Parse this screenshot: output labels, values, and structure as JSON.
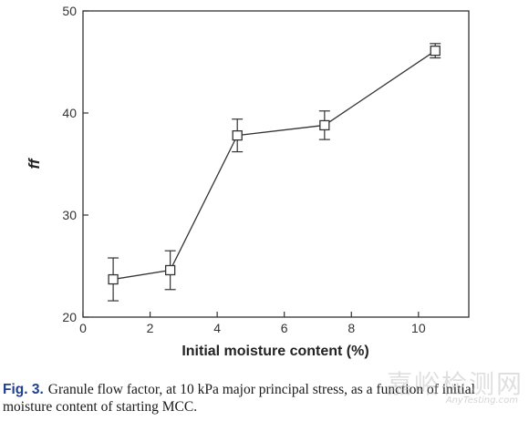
{
  "chart_data": {
    "type": "line",
    "title": "",
    "xlabel": "Initial moisture content (%)",
    "ylabel": "ff",
    "xlim": [
      0,
      11.5
    ],
    "ylim": [
      20,
      50
    ],
    "xticks": [
      0,
      2,
      4,
      6,
      8,
      10
    ],
    "yticks": [
      20,
      30,
      40,
      50
    ],
    "xtick_labels": [
      "0",
      "2",
      "4",
      "6",
      "8",
      "10"
    ],
    "ytick_labels": [
      "20",
      "30",
      "40",
      "50"
    ],
    "grid": false,
    "marker": "open-square",
    "line_color": "#333333",
    "series": [
      {
        "x": [
          0.9,
          2.6,
          4.6,
          7.2,
          10.5
        ],
        "y": [
          23.7,
          24.6,
          37.8,
          38.8,
          46.1
        ],
        "error": [
          2.1,
          1.9,
          1.6,
          1.4,
          0.7
        ]
      }
    ]
  },
  "caption": {
    "label": "Fig. 3.",
    "text": "Granule flow factor, at 10 kPa major principal stress, as a function of initial moisture content of starting MCC."
  },
  "watermark": {
    "text": "嘉峪检测网",
    "subtext": "AnyTesting.com"
  }
}
